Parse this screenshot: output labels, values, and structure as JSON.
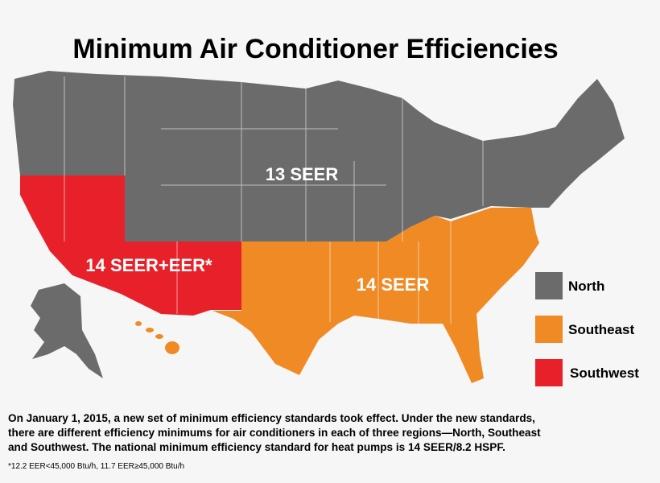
{
  "title": "Minimum Air Conditioner Efficiencies",
  "regions": [
    {
      "label": "13 SEER"
    },
    {
      "label": "14 SEER"
    },
    {
      "label": "14 SEER+EER*"
    }
  ],
  "legend": [
    "North",
    "Southeast",
    "Southwest"
  ],
  "body": [
    "On January 1, 2015, a new set of minimum efficiency standards took effect. Under the new standards,",
    "there are different efficiency minimums for air conditioners in each of three regions—North, Southeast",
    "and Southwest. The national minimum efficiency standard for heat pumps is 14 SEER/8.2 HSPF."
  ],
  "footnote": "*12.2 EER<45,000 Btu/h, 11.7 EER≥45,000 Btu/h"
}
